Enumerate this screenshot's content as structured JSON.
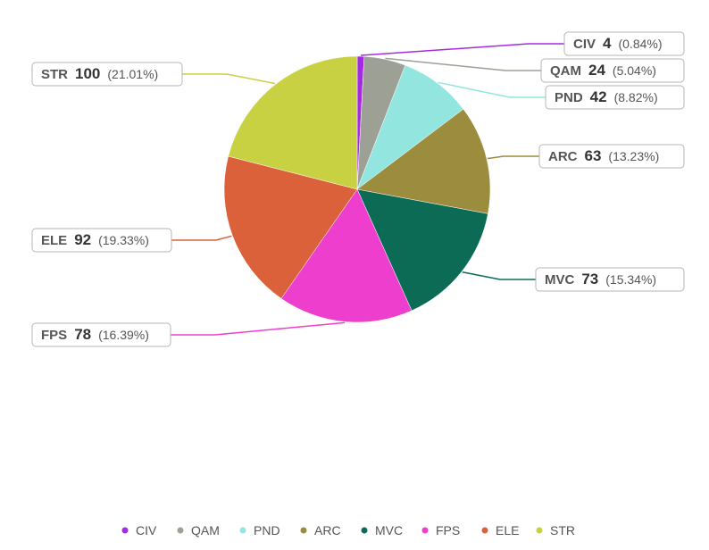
{
  "chart_data": {
    "type": "pie",
    "categories": [
      "CIV",
      "QAM",
      "PND",
      "ARC",
      "MVC",
      "FPS",
      "ELE",
      "STR"
    ],
    "values": [
      4,
      24,
      42,
      63,
      73,
      78,
      92,
      100
    ],
    "percent_labels": [
      "(0.84%)",
      "(5.04%)",
      "(8.82%)",
      "(13.23%)",
      "(15.34%)",
      "(16.39%)",
      "(19.33%)",
      "(21.01%)"
    ],
    "colors": [
      "#a52be0",
      "#9ca095",
      "#93e5df",
      "#9c8c3d",
      "#0b6b55",
      "#ee3ecd",
      "#db613b",
      "#c7d142"
    ],
    "legend_position": "bottom"
  }
}
